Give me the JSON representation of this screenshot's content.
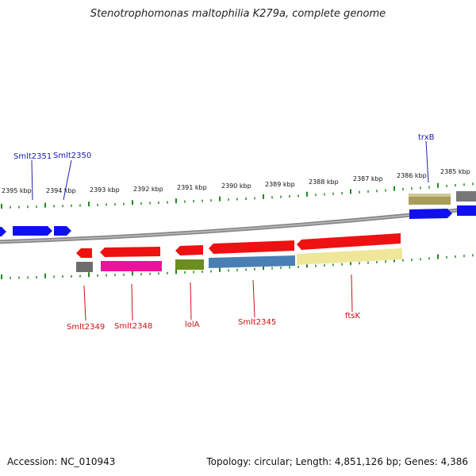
{
  "title": "Stenotrophomonas maltophilia K279a, complete genome",
  "footer": {
    "accession": "Accession: NC_010943",
    "stats": "Topology: circular; Length: 4,851,126 bp; Genes: 4,386"
  },
  "ticks": [
    "2395 kbp",
    "2394 kbp",
    "2393 kbp",
    "2392 kbp",
    "2391 kbp",
    "2390 kbp",
    "2389 kbp",
    "2388 kbp",
    "2387 kbp",
    "2386 kbp",
    "2385 kbp"
  ],
  "labels_top": [
    "Smlt2351",
    "Smlt2350",
    "trxB"
  ],
  "labels_bottom": [
    "Smlt2349",
    "Smlt2348",
    "lolA",
    "Smlt2345",
    "ftsK"
  ],
  "colors": {
    "backbone": "#7f7f7f",
    "tick": "#1f8a1f",
    "cds_forward": "#1010ee",
    "cds_reverse": "#ee1111",
    "label_top": "#1a1aa8",
    "label_bottom": "#cc1111"
  }
}
